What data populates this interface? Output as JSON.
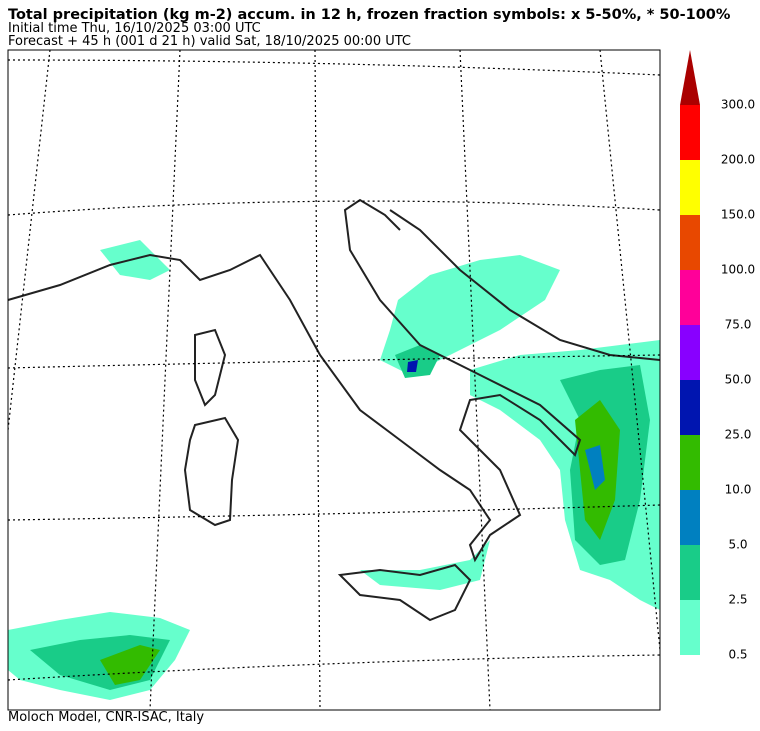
{
  "header": {
    "title": "Total precipitation (kg m-2) accum. in 12 h, frozen fraction symbols: x 5-50%, * 50-100%",
    "initial_time": "Initial time  Thu, 16/10/2025  03:00 UTC",
    "forecast": "Forecast  +  45 h  (001 d 21 h)  valid Sat, 18/10/2025 00:00 UTC"
  },
  "colorbar": {
    "labels": [
      "0.5",
      "2.5",
      "5.0",
      "10.0",
      "25.0",
      "50.0",
      "75.0",
      "100.0",
      "150.0",
      "200.0",
      "300.0"
    ],
    "colors": [
      "#66ffcc",
      "#19cc88",
      "#0080c0",
      "#33bb00",
      "#0015b0",
      "#8800ff",
      "#ff0099",
      "#e84800",
      "#ffff00",
      "#ff0000"
    ],
    "extend_color": "#aa0000"
  },
  "footer": "Moloch Model, CNR-ISAC, Italy"
}
